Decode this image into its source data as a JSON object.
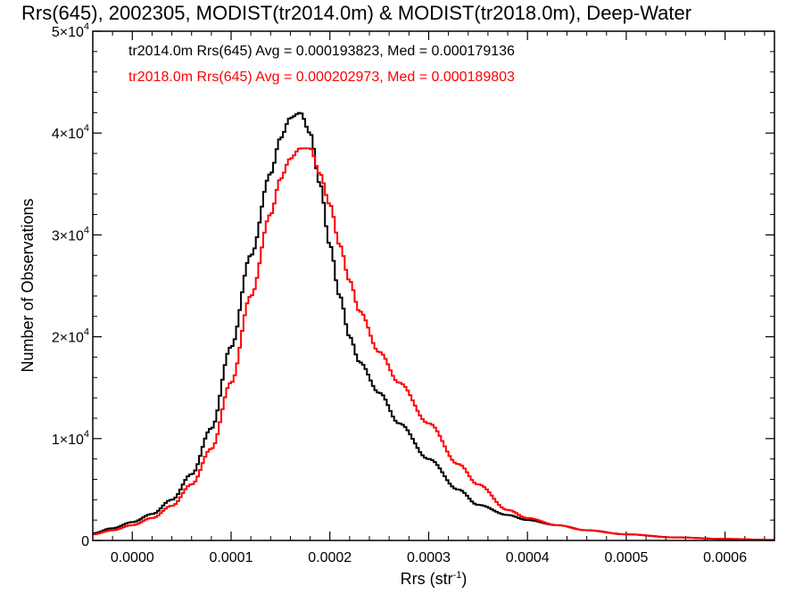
{
  "chart_data": {
    "type": "line",
    "title": "Rrs(645), 2002305, MODIST(tr2014.0m) & MODIST(tr2018.0m), Deep-Water",
    "xlabel": "Rrs (str",
    "xlabel_sup": "-1",
    "xlabel_close": ")",
    "ylabel": "Number of Observations",
    "xlim": [
      -4e-05,
      0.00065
    ],
    "ylim": [
      0,
      50000
    ],
    "xticks": [
      {
        "v": 0.0,
        "label": "0.0000"
      },
      {
        "v": 0.0001,
        "label": "0.0001"
      },
      {
        "v": 0.0002,
        "label": "0.0002"
      },
      {
        "v": 0.0003,
        "label": "0.0003"
      },
      {
        "v": 0.0004,
        "label": "0.0004"
      },
      {
        "v": 0.0005,
        "label": "0.0005"
      },
      {
        "v": 0.0006,
        "label": "0.0006"
      }
    ],
    "yticks": [
      {
        "v": 0,
        "label": "0",
        "exp": ""
      },
      {
        "v": 10000,
        "label": "1×10",
        "exp": "4"
      },
      {
        "v": 20000,
        "label": "2×10",
        "exp": "4"
      },
      {
        "v": 30000,
        "label": "3×10",
        "exp": "4"
      },
      {
        "v": 40000,
        "label": "4×10",
        "exp": "4"
      },
      {
        "v": 50000,
        "label": "5×10",
        "exp": "4"
      }
    ],
    "grid": false,
    "annotations": [
      {
        "text": "tr2014.0m Rrs(645) Avg = 0.000193823, Med = 0.000179136",
        "color": "#000000"
      },
      {
        "text": "tr2018.0m Rrs(645) Avg = 0.000202973, Med = 0.000189803",
        "color": "#ff0000"
      }
    ],
    "series": [
      {
        "color": "#000000",
        "x": [
          -4e-05,
          -2e-05,
          0.0,
          2e-05,
          4e-05,
          6e-05,
          8e-05,
          0.0001,
          0.00012,
          0.00014,
          0.00015,
          0.00016,
          0.00017,
          0.00018,
          0.00019,
          0.0002,
          0.00021,
          0.00022,
          0.00023,
          0.00025,
          0.00027,
          0.0003,
          0.00033,
          0.00035,
          0.00038,
          0.0004,
          0.00043,
          0.00046,
          0.0005,
          0.00055,
          0.0006,
          0.00065
        ],
        "y": [
          700,
          1200,
          1800,
          2600,
          4000,
          6500,
          11000,
          19000,
          28000,
          36000,
          39500,
          41500,
          42000,
          40000,
          35000,
          29000,
          24000,
          20000,
          17500,
          14500,
          11500,
          8000,
          5000,
          3500,
          2500,
          2000,
          1500,
          1000,
          600,
          300,
          150,
          50
        ]
      },
      {
        "color": "#ff0000",
        "x": [
          -4e-05,
          -2e-05,
          0.0,
          2e-05,
          4e-05,
          6e-05,
          8e-05,
          0.0001,
          0.00012,
          0.00014,
          0.00015,
          0.00016,
          0.00017,
          0.00018,
          0.00019,
          0.0002,
          0.00021,
          0.00022,
          0.00023,
          0.00025,
          0.00027,
          0.0003,
          0.00033,
          0.00035,
          0.00038,
          0.0004,
          0.00043,
          0.00046,
          0.0005,
          0.00055,
          0.0006,
          0.00065
        ],
        "y": [
          600,
          1000,
          1500,
          2200,
          3400,
          5500,
          9000,
          15500,
          24000,
          32000,
          35500,
          37500,
          38500,
          38500,
          36000,
          33000,
          29000,
          25500,
          22500,
          18500,
          15500,
          11500,
          7500,
          5500,
          3000,
          2200,
          1500,
          1000,
          600,
          300,
          150,
          50
        ]
      }
    ]
  }
}
